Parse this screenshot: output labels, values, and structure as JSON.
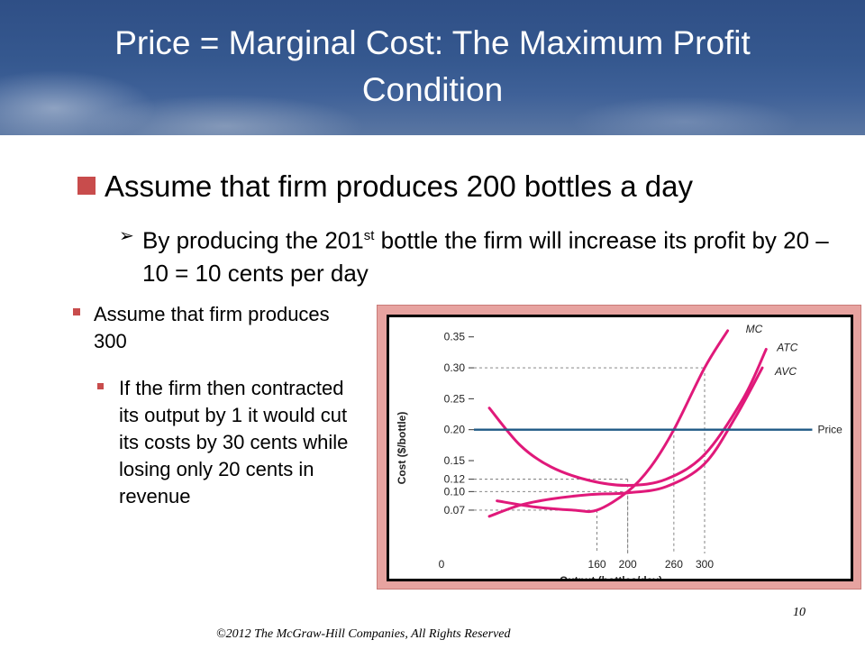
{
  "slide": {
    "title": "Price = Marginal Cost: The Maximum Profit Condition",
    "bullet_main": "Assume that firm produces 200 bottles a day",
    "sub_bullet_part1": "By producing the 201",
    "sub_bullet_sup": "st",
    "sub_bullet_part2": " bottle the firm will increase its profit by 20 – 10 = 10 cents per day",
    "left_bullet": "Assume that firm produces 300",
    "left_sub_bullet": "If the firm then contracted its output by 1 it would cut its costs by 30 cents while losing only 20 cents in revenue",
    "footer_copyright": "©2012 The McGraw-Hill Companies, All Rights Reserved",
    "page_number": "10",
    "accent_color": "#c84c4c",
    "title_bar_color": "#35588f"
  },
  "chart_data": {
    "type": "line",
    "xlabel": "Output (bottles/day)",
    "ylabel": "Cost ($/bottle)",
    "x_ticks": [
      0,
      160,
      200,
      260,
      300
    ],
    "x_tick_labels": [
      "0",
      "160",
      "200",
      "260",
      "300"
    ],
    "y_ticks": [
      0.07,
      0.1,
      0.12,
      0.15,
      0.2,
      0.25,
      0.3,
      0.35
    ],
    "y_tick_labels": [
      "0.07",
      "0.10",
      "0.12",
      "0.15",
      "0.20",
      "0.25",
      "0.30",
      "0.35"
    ],
    "xlim": [
      0,
      450
    ],
    "ylim": [
      0,
      0.37
    ],
    "grid": false,
    "series": [
      {
        "name": "MC",
        "color": "#e0197a",
        "x": [
          30,
          80,
          130,
          160,
          200,
          230,
          260,
          300,
          330
        ],
        "y": [
          0.085,
          0.075,
          0.07,
          0.07,
          0.1,
          0.14,
          0.2,
          0.3,
          0.36
        ]
      },
      {
        "name": "ATC",
        "color": "#e0197a",
        "x": [
          20,
          60,
          100,
          150,
          200,
          250,
          300,
          350,
          380
        ],
        "y": [
          0.235,
          0.175,
          0.14,
          0.118,
          0.11,
          0.12,
          0.16,
          0.25,
          0.33
        ]
      },
      {
        "name": "AVC",
        "color": "#e0197a",
        "x": [
          20,
          60,
          100,
          150,
          200,
          250,
          300,
          340,
          375
        ],
        "y": [
          0.06,
          0.078,
          0.088,
          0.095,
          0.098,
          0.108,
          0.145,
          0.22,
          0.3
        ]
      },
      {
        "name": "Price",
        "color": "#1f5a86",
        "x": [
          0,
          440
        ],
        "y": [
          0.2,
          0.2
        ]
      }
    ],
    "reference_lines": [
      {
        "x": 160,
        "y": 0.07
      },
      {
        "x": 200,
        "y": 0.1
      },
      {
        "x": 200,
        "y": 0.12
      },
      {
        "x": 260,
        "y": 0.2
      },
      {
        "x": 300,
        "y": 0.3
      }
    ]
  }
}
